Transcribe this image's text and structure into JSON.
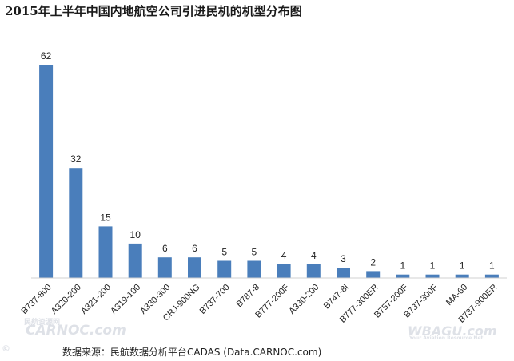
{
  "chart_data": {
    "type": "bar",
    "title": "2015年上半年中国内地航空公司引进民机的机型分布图",
    "categories": [
      "B737-800",
      "A320-200",
      "A321-200",
      "A319-100",
      "A330-300",
      "CRJ-900NG",
      "B737-700",
      "B787-8",
      "B777-200F",
      "A330-200",
      "B747-8I",
      "B777-300ER",
      "B757-200F",
      "B737-300F",
      "MA-60",
      "B737-900ER"
    ],
    "values": [
      62,
      32,
      15,
      10,
      6,
      6,
      5,
      5,
      4,
      4,
      3,
      2,
      1,
      1,
      1,
      1
    ],
    "ylim": [
      0,
      62
    ],
    "grid": false,
    "legend": "none",
    "bar_color": "#4a7ebb"
  },
  "source": "数据来源：民航数据分析平台CADAS (Data.CARNOC.com)",
  "watermarks": {
    "left_main": "CARNOC.com",
    "left_sub": "民航资源网",
    "right_main": "WBAGU.com",
    "right_sub": "Your Aviation Resource Net",
    "corner": "©"
  }
}
